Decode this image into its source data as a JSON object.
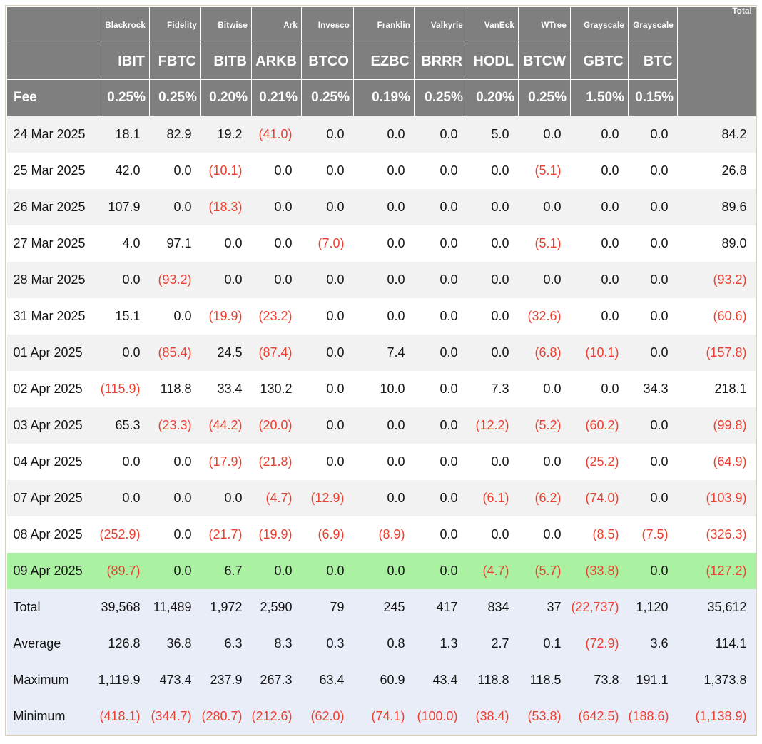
{
  "colors": {
    "header_bg": "#7f7f7f",
    "negative_text": "#eb4132",
    "highlight_row_bg": "#aaf2a1",
    "summary_row_bg": "#e9edf8",
    "stripe_row_bg": "#f2f2f3",
    "frame_border": "#d5d0bf"
  },
  "chart_data": {
    "type": "table",
    "fee_label": "Fee",
    "total_header": "Total",
    "columns": [
      {
        "issuer": "Blackrock",
        "ticker": "IBIT",
        "fee": "0.25%"
      },
      {
        "issuer": "Fidelity",
        "ticker": "FBTC",
        "fee": "0.25%"
      },
      {
        "issuer": "Bitwise",
        "ticker": "BITB",
        "fee": "0.20%"
      },
      {
        "issuer": "Ark",
        "ticker": "ARKB",
        "fee": "0.21%"
      },
      {
        "issuer": "Invesco",
        "ticker": "BTCO",
        "fee": "0.25%"
      },
      {
        "issuer": "Franklin",
        "ticker": "EZBC",
        "fee": "0.19%"
      },
      {
        "issuer": "Valkyrie",
        "ticker": "BRRR",
        "fee": "0.25%"
      },
      {
        "issuer": "VanEck",
        "ticker": "HODL",
        "fee": "0.20%"
      },
      {
        "issuer": "WTree",
        "ticker": "BTCW",
        "fee": "0.25%"
      },
      {
        "issuer": "Grayscale",
        "ticker": "GBTC",
        "fee": "1.50%"
      },
      {
        "issuer": "Grayscale",
        "ticker": "BTC",
        "fee": "0.15%"
      }
    ],
    "rows": [
      {
        "date": "24 Mar 2025",
        "highlight": false,
        "values": [
          "18.1",
          "82.9",
          "19.2",
          "(41.0)",
          "0.0",
          "0.0",
          "0.0",
          "5.0",
          "0.0",
          "0.0",
          "0.0",
          "84.2"
        ]
      },
      {
        "date": "25 Mar 2025",
        "highlight": false,
        "values": [
          "42.0",
          "0.0",
          "(10.1)",
          "0.0",
          "0.0",
          "0.0",
          "0.0",
          "0.0",
          "(5.1)",
          "0.0",
          "0.0",
          "26.8"
        ]
      },
      {
        "date": "26 Mar 2025",
        "highlight": false,
        "values": [
          "107.9",
          "0.0",
          "(18.3)",
          "0.0",
          "0.0",
          "0.0",
          "0.0",
          "0.0",
          "0.0",
          "0.0",
          "0.0",
          "89.6"
        ]
      },
      {
        "date": "27 Mar 2025",
        "highlight": false,
        "values": [
          "4.0",
          "97.1",
          "0.0",
          "0.0",
          "(7.0)",
          "0.0",
          "0.0",
          "0.0",
          "(5.1)",
          "0.0",
          "0.0",
          "89.0"
        ]
      },
      {
        "date": "28 Mar 2025",
        "highlight": false,
        "values": [
          "0.0",
          "(93.2)",
          "0.0",
          "0.0",
          "0.0",
          "0.0",
          "0.0",
          "0.0",
          "0.0",
          "0.0",
          "0.0",
          "(93.2)"
        ]
      },
      {
        "date": "31 Mar 2025",
        "highlight": false,
        "values": [
          "15.1",
          "0.0",
          "(19.9)",
          "(23.2)",
          "0.0",
          "0.0",
          "0.0",
          "0.0",
          "(32.6)",
          "0.0",
          "0.0",
          "(60.6)"
        ]
      },
      {
        "date": "01 Apr 2025",
        "highlight": false,
        "values": [
          "0.0",
          "(85.4)",
          "24.5",
          "(87.4)",
          "0.0",
          "7.4",
          "0.0",
          "0.0",
          "(6.8)",
          "(10.1)",
          "0.0",
          "(157.8)"
        ]
      },
      {
        "date": "02 Apr 2025",
        "highlight": false,
        "values": [
          "(115.9)",
          "118.8",
          "33.4",
          "130.2",
          "0.0",
          "10.0",
          "0.0",
          "7.3",
          "0.0",
          "0.0",
          "34.3",
          "218.1"
        ]
      },
      {
        "date": "03 Apr 2025",
        "highlight": false,
        "values": [
          "65.3",
          "(23.3)",
          "(44.2)",
          "(20.0)",
          "0.0",
          "0.0",
          "0.0",
          "(12.2)",
          "(5.2)",
          "(60.2)",
          "0.0",
          "(99.8)"
        ]
      },
      {
        "date": "04 Apr 2025",
        "highlight": false,
        "values": [
          "0.0",
          "0.0",
          "(17.9)",
          "(21.8)",
          "0.0",
          "0.0",
          "0.0",
          "0.0",
          "0.0",
          "(25.2)",
          "0.0",
          "(64.9)"
        ]
      },
      {
        "date": "07 Apr 2025",
        "highlight": false,
        "values": [
          "0.0",
          "0.0",
          "0.0",
          "(4.7)",
          "(12.9)",
          "0.0",
          "0.0",
          "(6.1)",
          "(6.2)",
          "(74.0)",
          "0.0",
          "(103.9)"
        ]
      },
      {
        "date": "08 Apr 2025",
        "highlight": false,
        "values": [
          "(252.9)",
          "0.0",
          "(21.7)",
          "(19.9)",
          "(6.9)",
          "(8.9)",
          "0.0",
          "0.0",
          "0.0",
          "(8.5)",
          "(7.5)",
          "(326.3)"
        ]
      },
      {
        "date": "09 Apr 2025",
        "highlight": true,
        "values": [
          "(89.7)",
          "0.0",
          "6.7",
          "0.0",
          "0.0",
          "0.0",
          "0.0",
          "(4.7)",
          "(5.7)",
          "(33.8)",
          "0.0",
          "(127.2)"
        ]
      }
    ],
    "summary": [
      {
        "label": "Total",
        "values": [
          "39,568",
          "11,489",
          "1,972",
          "2,590",
          "79",
          "245",
          "417",
          "834",
          "37",
          "(22,737)",
          "1,120",
          "35,612"
        ]
      },
      {
        "label": "Average",
        "values": [
          "126.8",
          "36.8",
          "6.3",
          "8.3",
          "0.3",
          "0.8",
          "1.3",
          "2.7",
          "0.1",
          "(72.9)",
          "3.6",
          "114.1"
        ]
      },
      {
        "label": "Maximum",
        "values": [
          "1,119.9",
          "473.4",
          "237.9",
          "267.3",
          "63.4",
          "60.9",
          "43.4",
          "118.8",
          "118.5",
          "73.8",
          "191.1",
          "1,373.8"
        ]
      },
      {
        "label": "Minimum",
        "values": [
          "(418.1)",
          "(344.7)",
          "(280.7)",
          "(212.6)",
          "(62.0)",
          "(74.1)",
          "(100.0)",
          "(38.4)",
          "(53.8)",
          "(642.5)",
          "(188.6)",
          "(1,138.9)"
        ]
      }
    ]
  }
}
